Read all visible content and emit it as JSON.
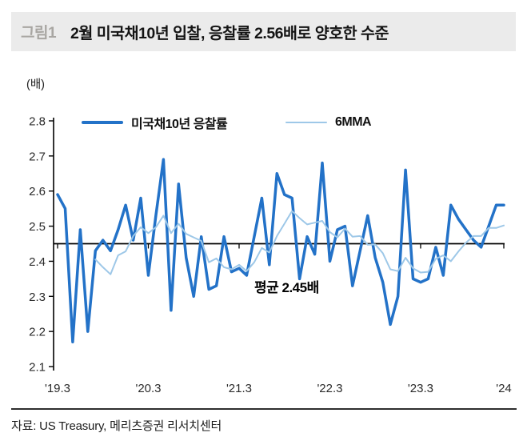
{
  "header": {
    "figure_label": "그림1",
    "title": "2월 미국채10년 입찰, 응찰률 2.56배로 양호한 수준"
  },
  "unit_label": "(배)",
  "legend": [
    {
      "label": "미국채10년 응찰률",
      "color": "#2372c8",
      "style": "thick"
    },
    {
      "label": "6MMA",
      "color": "#9ec8e8",
      "style": "thin"
    }
  ],
  "annotation": {
    "text": "평균 2.45배",
    "value": 2.45
  },
  "source": "자료: US Treasury,  메리츠증권 리서치센터",
  "colors": {
    "main_line": "#2372c8",
    "ma_line": "#9ec8e8",
    "average_line": "#000000",
    "axis": "#000000",
    "tick_text": "#2a2a2a",
    "title_bar_bg": "#ebebeb",
    "figure_label_gray": "#a8a6a2"
  },
  "chart_data": {
    "type": "line",
    "title": "2월 미국채10년 입찰, 응찰률 2.56배로 양호한 수준",
    "ylabel": "배 (bid-to-cover ratio)",
    "ylim": [
      2.1,
      2.8
    ],
    "yticks": [
      "2.8",
      "2.7",
      "2.6",
      "2.5",
      "2.4",
      "2.3",
      "2.2",
      "2.1"
    ],
    "average_line": 2.45,
    "grid": false,
    "legend_position": "top",
    "x": [
      "2019.03",
      "2019.04",
      "2019.05",
      "2019.06",
      "2019.07",
      "2019.08",
      "2019.09",
      "2019.10",
      "2019.11",
      "2019.12",
      "2020.01",
      "2020.02",
      "2020.03",
      "2020.04",
      "2020.05",
      "2020.06",
      "2020.07",
      "2020.08",
      "2020.09",
      "2020.10",
      "2020.11",
      "2020.12",
      "2021.01",
      "2021.02",
      "2021.03",
      "2021.04",
      "2021.05",
      "2021.06",
      "2021.07",
      "2021.08",
      "2021.09",
      "2021.10",
      "2021.11",
      "2021.12",
      "2022.01",
      "2022.02",
      "2022.03",
      "2022.04",
      "2022.05",
      "2022.06",
      "2022.07",
      "2022.08",
      "2022.09",
      "2022.10",
      "2022.11",
      "2022.12",
      "2023.01",
      "2023.02",
      "2023.03",
      "2023.04",
      "2023.05",
      "2023.06",
      "2023.07",
      "2023.08",
      "2023.09",
      "2023.10",
      "2023.11",
      "2023.12",
      "2024.01",
      "2024.02"
    ],
    "xtick_labels": [
      {
        "index": 0,
        "label": "'19.3"
      },
      {
        "index": 12,
        "label": "'20.3"
      },
      {
        "index": 24,
        "label": "'21.3"
      },
      {
        "index": 36,
        "label": "'22.3"
      },
      {
        "index": 48,
        "label": "'23.3"
      },
      {
        "index": 59,
        "label": "'24"
      }
    ],
    "series": [
      {
        "name": "미국채10년 응찰률",
        "color": "#2372c8",
        "width": 3.5,
        "start_index": 0,
        "values": [
          2.59,
          2.55,
          2.17,
          2.49,
          2.2,
          2.43,
          2.46,
          2.43,
          2.49,
          2.56,
          2.46,
          2.58,
          2.36,
          2.53,
          2.69,
          2.26,
          2.62,
          2.41,
          2.3,
          2.47,
          2.32,
          2.33,
          2.47,
          2.37,
          2.38,
          2.36,
          2.47,
          2.58,
          2.39,
          2.65,
          2.59,
          2.58,
          2.35,
          2.47,
          2.42,
          2.68,
          2.4,
          2.49,
          2.5,
          2.33,
          2.43,
          2.53,
          2.41,
          2.34,
          2.22,
          2.3,
          2.66,
          2.35,
          2.34,
          2.35,
          2.44,
          2.36,
          2.56,
          2.52,
          2.49,
          2.46,
          2.44,
          2.5,
          2.56,
          2.56
        ]
      },
      {
        "name": "6MMA",
        "color": "#9ec8e8",
        "width": 2,
        "start_index": 5,
        "values": [
          2.405,
          2.383,
          2.363,
          2.417,
          2.428,
          2.472,
          2.497,
          2.48,
          2.497,
          2.53,
          2.48,
          2.507,
          2.478,
          2.468,
          2.458,
          2.397,
          2.408,
          2.383,
          2.377,
          2.39,
          2.372,
          2.397,
          2.438,
          2.425,
          2.472,
          2.507,
          2.543,
          2.523,
          2.505,
          2.51,
          2.515,
          2.483,
          2.468,
          2.493,
          2.47,
          2.472,
          2.447,
          2.448,
          2.423,
          2.377,
          2.372,
          2.41,
          2.38,
          2.368,
          2.37,
          2.407,
          2.417,
          2.4,
          2.428,
          2.453,
          2.472,
          2.472,
          2.495,
          2.495,
          2.502
        ]
      }
    ]
  }
}
